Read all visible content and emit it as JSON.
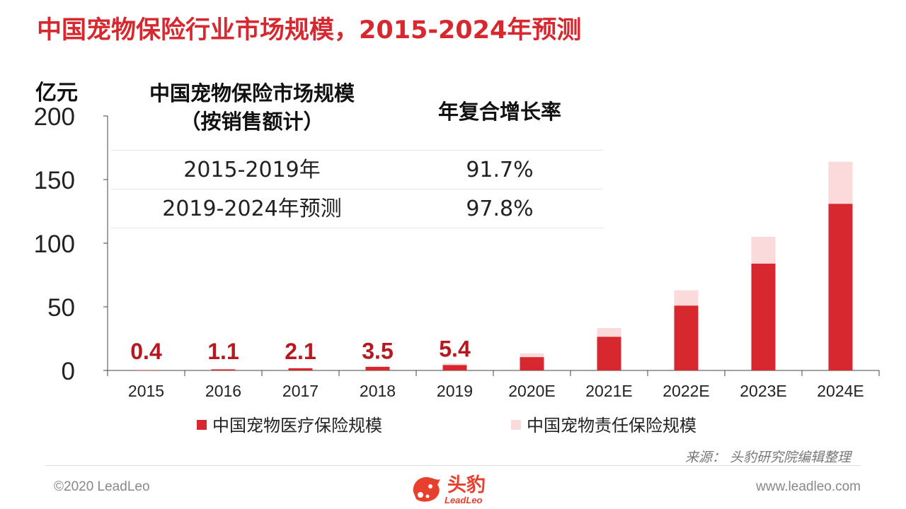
{
  "title": "中国宠物保险行业市场规模，2015-2024年预测",
  "unit_label": "亿元",
  "table": {
    "headers": [
      "中国宠物保险市场规模\n（按销售额计）",
      "年复合增长率"
    ],
    "rows": [
      {
        "period": "2015-2019年",
        "cagr": "91.7%"
      },
      {
        "period": "2019-2024年预测",
        "cagr": "97.8%"
      }
    ]
  },
  "chart_data": {
    "type": "bar",
    "stacked": true,
    "categories": [
      "2015",
      "2016",
      "2017",
      "2018",
      "2019",
      "2020E",
      "2021E",
      "2022E",
      "2023E",
      "2024E"
    ],
    "series": [
      {
        "name": "中国宠物医疗保险规模",
        "color": "#d7282f",
        "values": [
          0.3,
          0.9,
          1.7,
          2.8,
          4.3,
          10.5,
          26.5,
          51,
          84,
          131
        ]
      },
      {
        "name": "中国宠物责任保险规模",
        "color": "#fadadb",
        "values": [
          0.1,
          0.2,
          0.4,
          0.7,
          1.1,
          2.9,
          6.8,
          12,
          21,
          33
        ]
      }
    ],
    "total_labels": [
      "0.4",
      "1.1",
      "2.1",
      "3.5",
      "5.4",
      "",
      "",
      "",
      "",
      ""
    ],
    "yticks": [
      0,
      50,
      100,
      150,
      200
    ],
    "ylim": [
      0,
      200
    ],
    "ylabel": "亿元",
    "grid": false,
    "legend_position": "bottom"
  },
  "legend": {
    "items": [
      {
        "label": "中国宠物医疗保险规模",
        "color": "#d7282f"
      },
      {
        "label": "中国宠物责任保险规模",
        "color": "#fadadb"
      }
    ]
  },
  "source": "来源： 头豹研究院编辑整理",
  "footer": {
    "copyright": "©2020 LeadLeo",
    "website": "www.leadleo.com",
    "logo_cn": "头豹",
    "logo_en": "LeadLeo"
  }
}
